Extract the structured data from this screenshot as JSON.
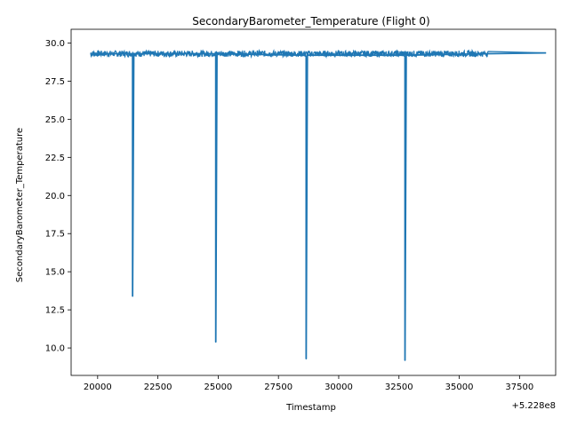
{
  "chart_data": {
    "type": "line",
    "title": "SecondaryBarometer_Temperature (Flight 0)",
    "xlabel": "Timestamp",
    "ylabel": "SecondaryBarometer_Temperature",
    "x_offset_label": "+5.228e8",
    "xlim": [
      18900,
      39000
    ],
    "ylim": [
      8.2,
      30.9
    ],
    "xticks": [
      20000,
      22500,
      25000,
      27500,
      30000,
      32500,
      35000,
      37500
    ],
    "xtick_labels": [
      "20000",
      "22500",
      "25000",
      "27500",
      "30000",
      "32500",
      "35000",
      "37500"
    ],
    "yticks": [
      10.0,
      12.5,
      15.0,
      17.5,
      20.0,
      22.5,
      25.0,
      27.5,
      30.0
    ],
    "ytick_labels": [
      "10.0",
      "12.5",
      "15.0",
      "17.5",
      "20.0",
      "22.5",
      "25.0",
      "27.5",
      "30.0"
    ],
    "grid": false,
    "color": "#1f77b4",
    "noise_band": {
      "x": [
        19700,
        36200
      ],
      "y_range": [
        29.1,
        29.5
      ],
      "x_tail": [
        36200,
        38600
      ],
      "y_tail": 29.35
    },
    "series": [
      {
        "x": [
          19700,
          21400,
          21450,
          21450,
          21500,
          24800,
          24900,
          24900,
          24950,
          28600,
          28650,
          28650,
          28700,
          32700,
          32750,
          32750,
          32800,
          36200,
          38600
        ],
        "y": [
          29.3,
          29.3,
          29.2,
          13.4,
          29.3,
          29.3,
          29.2,
          10.4,
          29.3,
          29.2,
          29.1,
          9.3,
          29.2,
          29.2,
          29.1,
          9.2,
          29.2,
          29.3,
          29.35
        ]
      }
    ]
  }
}
